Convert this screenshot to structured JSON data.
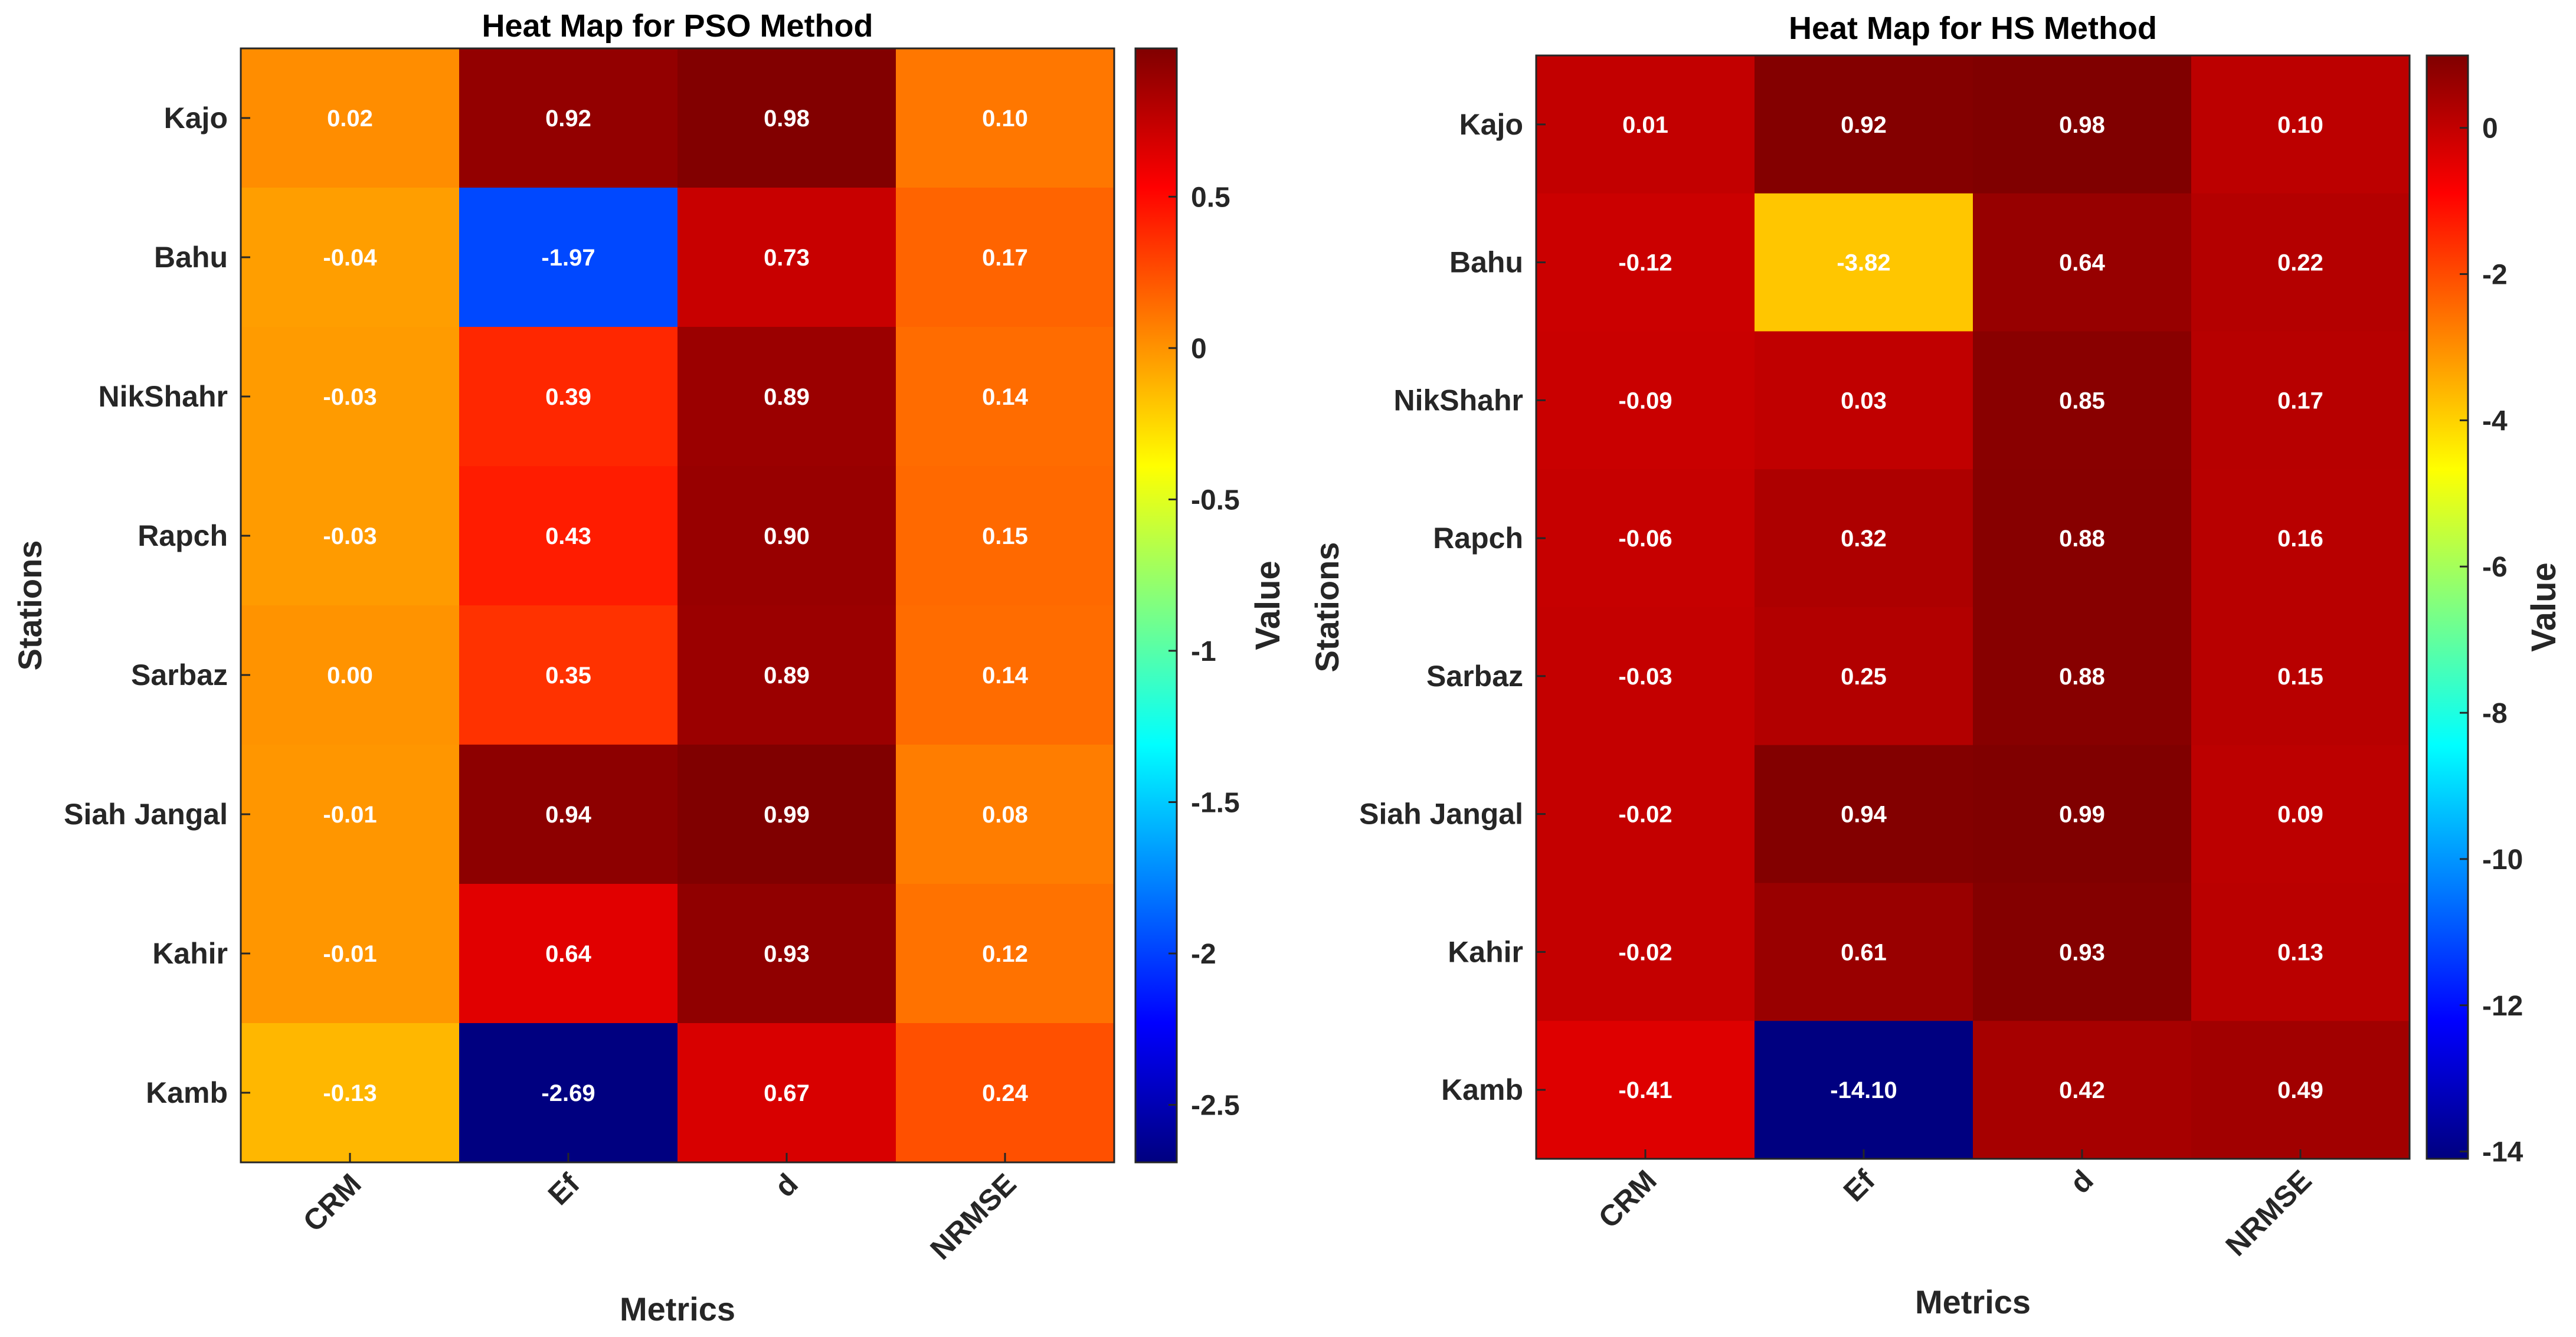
{
  "chart_data": [
    {
      "type": "heatmap",
      "title": "Heat Map for PSO Method",
      "xlabel": "Metrics",
      "ylabel": "Stations",
      "colorbar_label": "Value",
      "colormap": "jet",
      "clim": [
        -2.69,
        0.99
      ],
      "colorbar_ticks": [
        "0.5",
        "0",
        "-0.5",
        "-1",
        "-1.5",
        "-2",
        "-2.5"
      ],
      "colorbar_tick_values": [
        0.5,
        0,
        -0.5,
        -1,
        -1.5,
        -2,
        -2.5
      ],
      "x_categories": [
        "CRM",
        "Ef",
        "d",
        "NRMSE"
      ],
      "y_categories": [
        "Kajo",
        "Bahu",
        "NikShahr",
        "Rapch",
        "Sarbaz",
        "Siah Jangal",
        "Kahir",
        "Kamb"
      ],
      "values": [
        [
          0.02,
          0.92,
          0.98,
          0.1
        ],
        [
          -0.04,
          -1.97,
          0.73,
          0.17
        ],
        [
          -0.03,
          0.39,
          0.89,
          0.14
        ],
        [
          -0.03,
          0.43,
          0.9,
          0.15
        ],
        [
          0.0,
          0.35,
          0.89,
          0.14
        ],
        [
          -0.01,
          0.94,
          0.99,
          0.08
        ],
        [
          -0.01,
          0.64,
          0.93,
          0.12
        ],
        [
          -0.13,
          -2.69,
          0.67,
          0.24
        ]
      ],
      "labels": [
        [
          "0.02",
          "0.92",
          "0.98",
          "0.10"
        ],
        [
          "-0.04",
          "-1.97",
          "0.73",
          "0.17"
        ],
        [
          "-0.03",
          "0.39",
          "0.89",
          "0.14"
        ],
        [
          "-0.03",
          "0.43",
          "0.90",
          "0.15"
        ],
        [
          "0.00",
          "0.35",
          "0.89",
          "0.14"
        ],
        [
          "-0.01",
          "0.94",
          "0.99",
          "0.08"
        ],
        [
          "-0.01",
          "0.64",
          "0.93",
          "0.12"
        ],
        [
          "-0.13",
          "-2.69",
          "0.67",
          "0.24"
        ]
      ]
    },
    {
      "type": "heatmap",
      "title": "Heat Map for HS Method",
      "xlabel": "Metrics",
      "ylabel": "Stations",
      "colorbar_label": "Value",
      "colormap": "jet",
      "clim": [
        -14.1,
        0.99
      ],
      "colorbar_ticks": [
        "0",
        "-2",
        "-4",
        "-6",
        "-8",
        "-10",
        "-12",
        "-14"
      ],
      "colorbar_tick_values": [
        0,
        -2,
        -4,
        -6,
        -8,
        -10,
        -12,
        -14
      ],
      "x_categories": [
        "CRM",
        "Ef",
        "d",
        "NRMSE"
      ],
      "y_categories": [
        "Kajo",
        "Bahu",
        "NikShahr",
        "Rapch",
        "Sarbaz",
        "Siah Jangal",
        "Kahir",
        "Kamb"
      ],
      "values": [
        [
          0.01,
          0.92,
          0.98,
          0.1
        ],
        [
          -0.12,
          -3.82,
          0.64,
          0.22
        ],
        [
          -0.09,
          0.03,
          0.85,
          0.17
        ],
        [
          -0.06,
          0.32,
          0.88,
          0.16
        ],
        [
          -0.03,
          0.25,
          0.88,
          0.15
        ],
        [
          -0.02,
          0.94,
          0.99,
          0.09
        ],
        [
          -0.02,
          0.61,
          0.93,
          0.13
        ],
        [
          -0.41,
          -14.1,
          0.42,
          0.49
        ]
      ],
      "labels": [
        [
          "0.01",
          "0.92",
          "0.98",
          "0.10"
        ],
        [
          "-0.12",
          "-3.82",
          "0.64",
          "0.22"
        ],
        [
          "-0.09",
          "0.03",
          "0.85",
          "0.17"
        ],
        [
          "-0.06",
          "0.32",
          "0.88",
          "0.16"
        ],
        [
          "-0.03",
          "0.25",
          "0.88",
          "0.15"
        ],
        [
          "-0.02",
          "0.94",
          "0.99",
          "0.09"
        ],
        [
          "-0.02",
          "0.61",
          "0.93",
          "0.13"
        ],
        [
          "-0.41",
          "-14.10",
          "0.42",
          "0.49"
        ]
      ]
    }
  ]
}
